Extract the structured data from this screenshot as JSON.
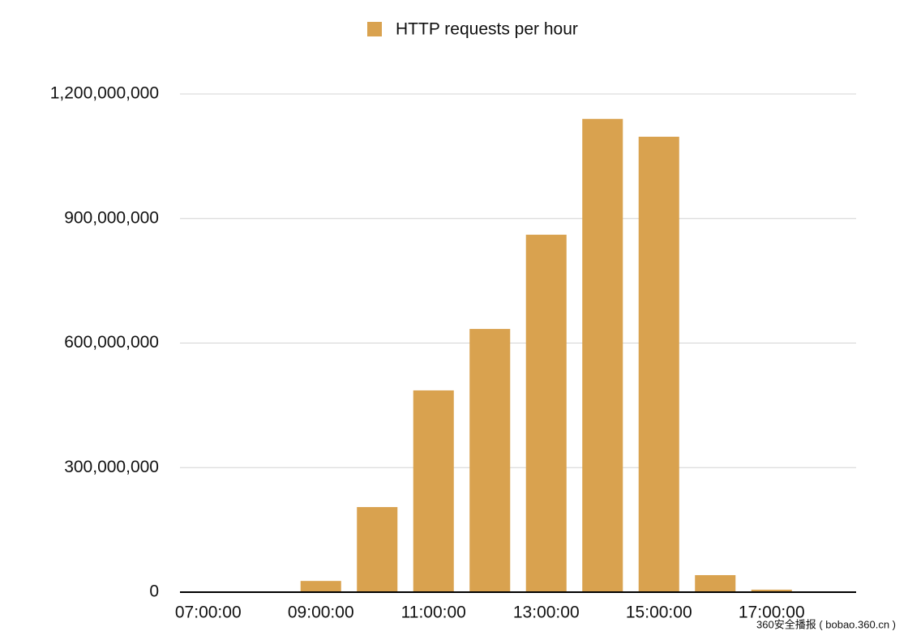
{
  "chart_data": {
    "type": "bar",
    "categories": [
      "07:00:00",
      null,
      "09:00:00",
      null,
      "11:00:00",
      null,
      "13:00:00",
      null,
      "15:00:00",
      null,
      "17:00:00",
      null
    ],
    "series": [
      {
        "name": "HTTP requests per hour",
        "color": "#d9a24f",
        "values": [
          0,
          0,
          27000000,
          205000000,
          486000000,
          634000000,
          861000000,
          1140000000,
          1097000000,
          41000000,
          6000000,
          0
        ]
      }
    ],
    "ylim": [
      0,
      1200000000
    ],
    "yticks": [
      0,
      {
        "value": 300000000,
        "label": "300,000,000"
      },
      {
        "value": 600000000,
        "label": "600,000,000"
      },
      {
        "value": 900000000,
        "label": "900,000,000"
      },
      {
        "value": 1200000000,
        "label": "1,200,000,000"
      }
    ],
    "grid": true,
    "legend": "top",
    "watermark": "360安全播报 ( bobao.360.cn )"
  }
}
